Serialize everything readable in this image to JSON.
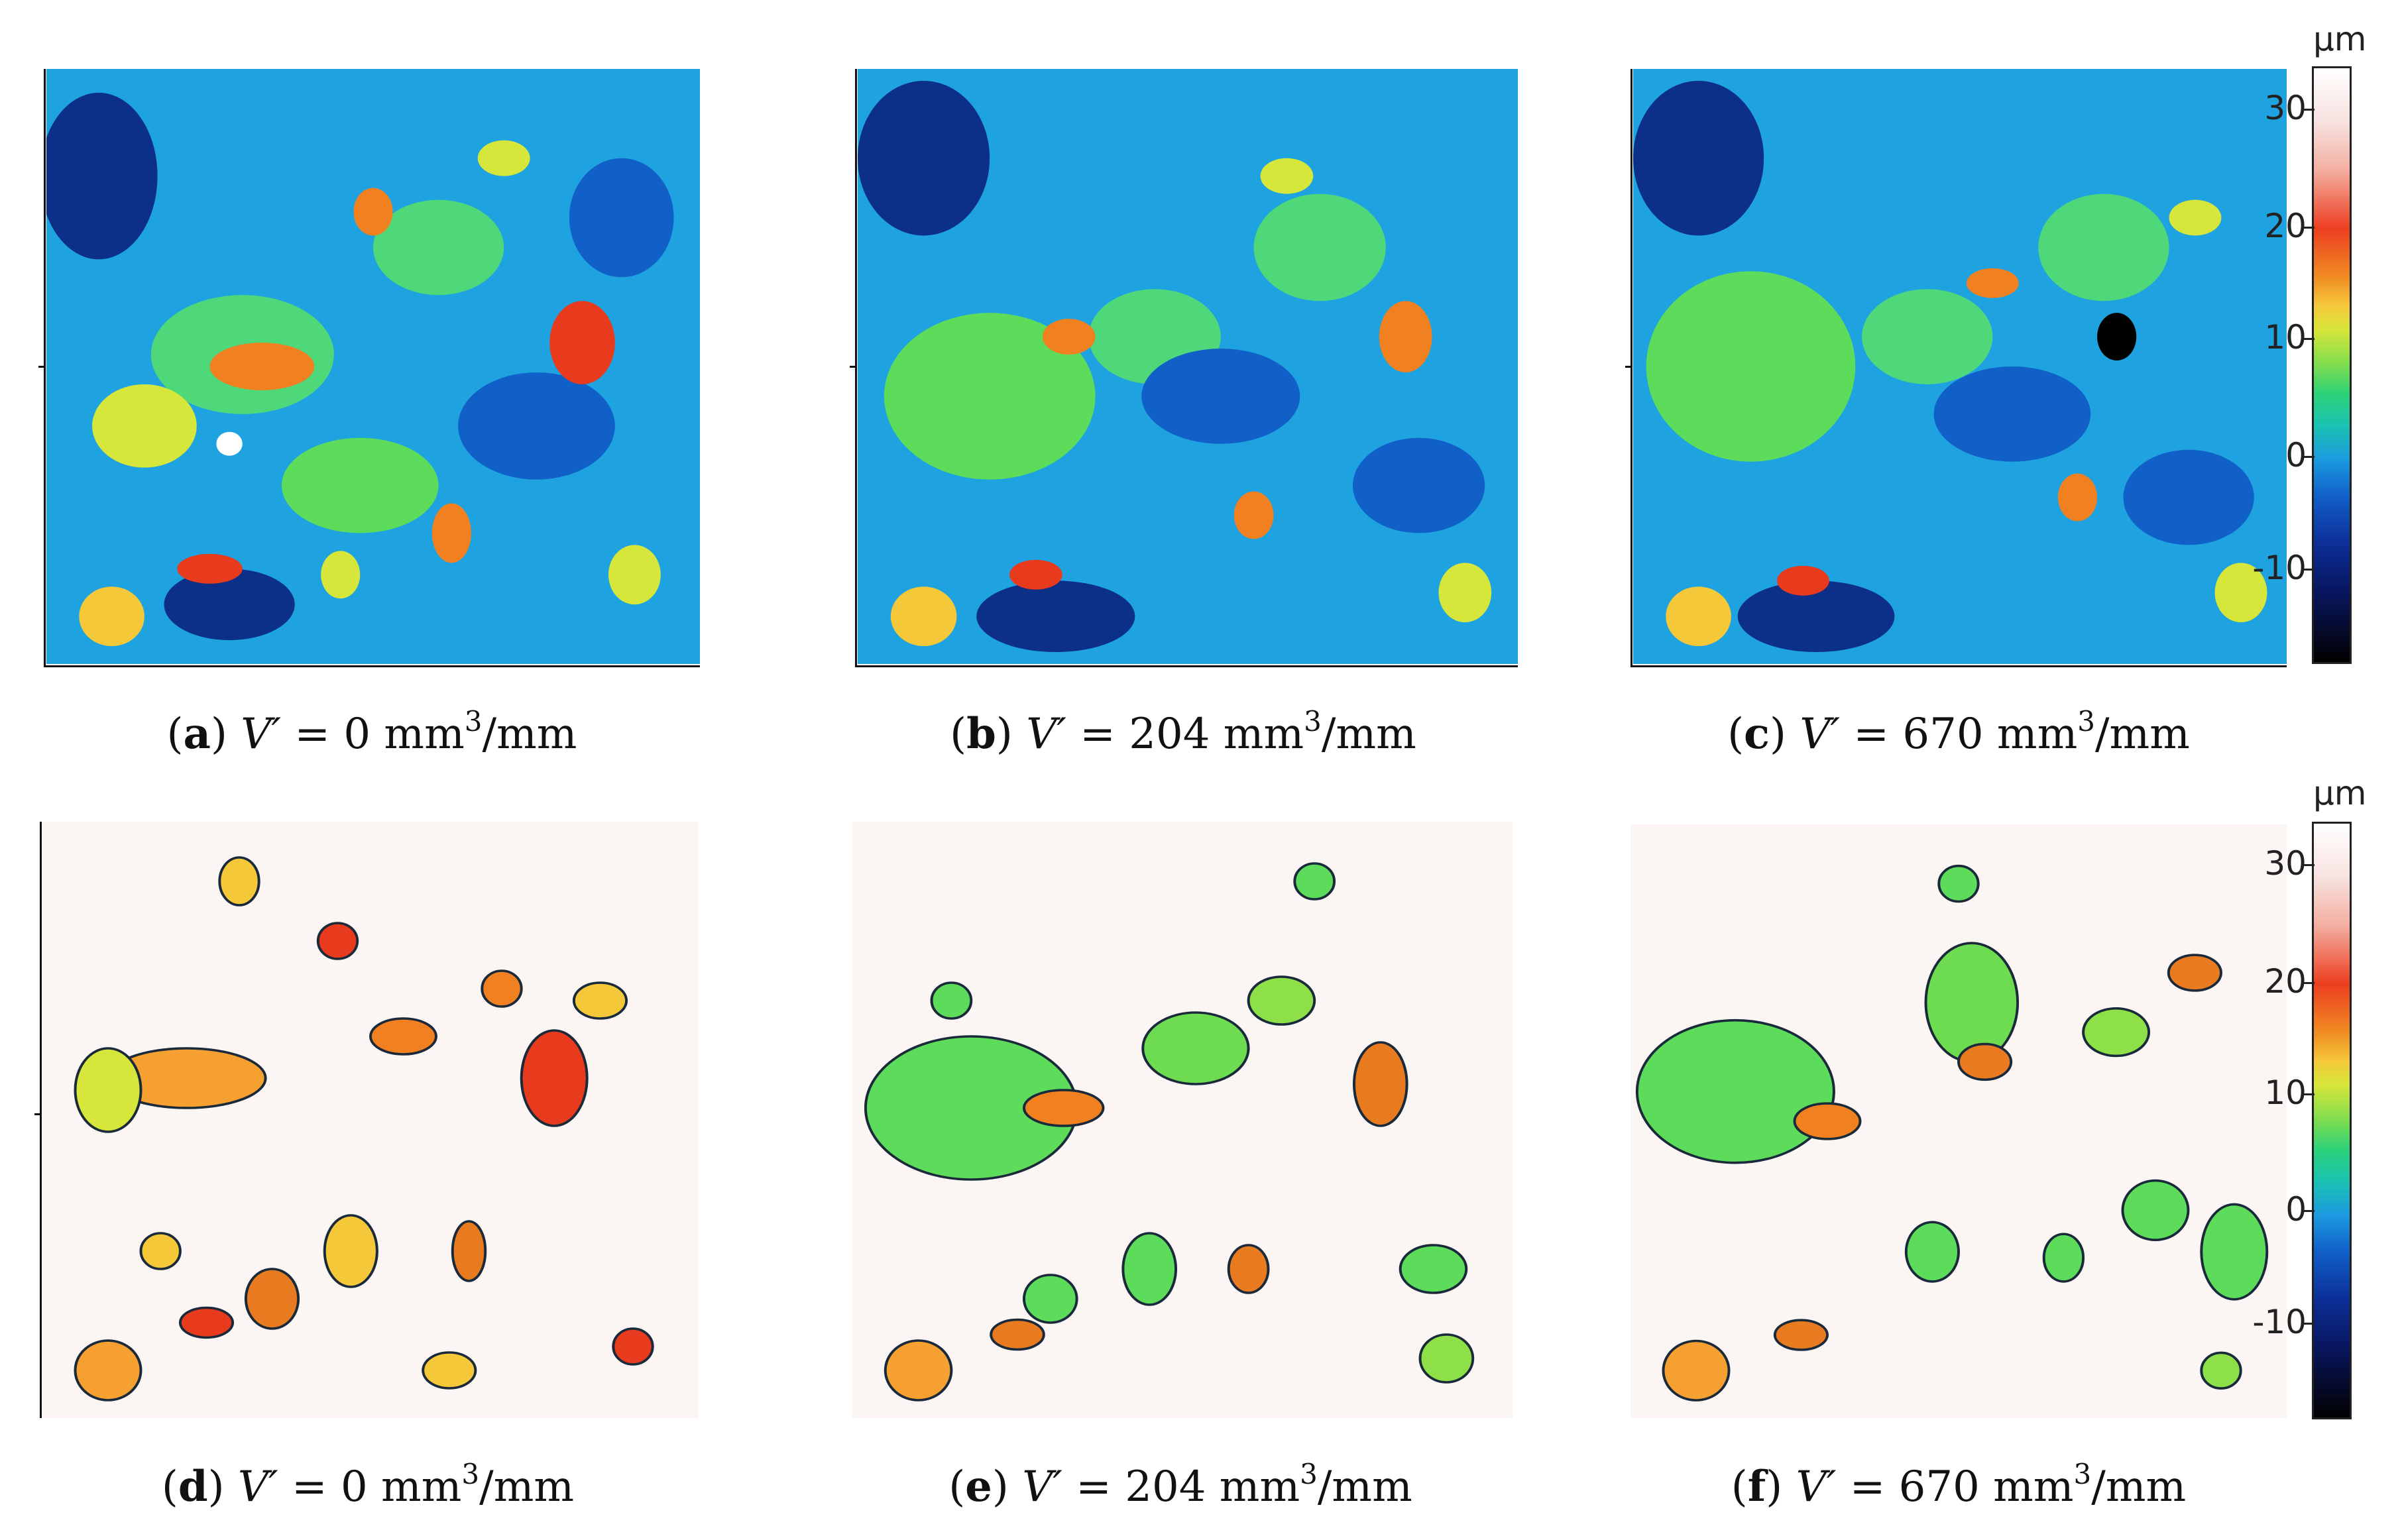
{
  "panels": [
    {
      "letter": "a",
      "pre": "(",
      "close": ")",
      "var": "V′",
      "eq": " = ",
      "value": "0",
      "unit": " mm",
      "sup": "3",
      "post": "/mm"
    },
    {
      "letter": "b",
      "pre": "(",
      "close": ")",
      "var": "V′",
      "eq": " = ",
      "value": "204",
      "unit": " mm",
      "sup": "3",
      "post": "/mm"
    },
    {
      "letter": "c",
      "pre": "(",
      "close": ")",
      "var": "V′",
      "eq": " = ",
      "value": "670",
      "unit": " mm",
      "sup": "3",
      "post": "/mm"
    },
    {
      "letter": "d",
      "pre": "(",
      "close": ")",
      "var": "V′",
      "eq": " = ",
      "value": "0",
      "unit": " mm",
      "sup": "3",
      "post": "/mm"
    },
    {
      "letter": "e",
      "pre": "(",
      "close": ")",
      "var": "V′",
      "eq": " = ",
      "value": "204",
      "unit": " mm",
      "sup": "3",
      "post": "/mm"
    },
    {
      "letter": "f",
      "pre": "(",
      "close": ")",
      "var": "V′",
      "eq": " = ",
      "value": "670",
      "unit": " mm",
      "sup": "3",
      "post": "/mm"
    }
  ],
  "colorbar": {
    "unit": "µm",
    "ticks": [
      "30",
      "20",
      "10",
      "0",
      "-10"
    ],
    "tick_values": [
      30,
      20,
      10,
      0,
      -10
    ],
    "range": [
      -17,
      33
    ]
  },
  "colors": {
    "map_background": "#1fa3e0",
    "masked_background": "#fbf6f4",
    "grain_high": "#f08020",
    "grain_peak": "#e83a1c",
    "grain_mid": "#d6e63a",
    "grain_low": "#5cdc5a",
    "deep": "#0c2f88"
  }
}
